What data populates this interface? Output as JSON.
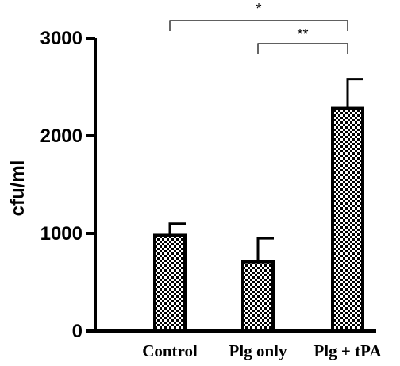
{
  "chart_data": {
    "type": "bar",
    "title": "",
    "xlabel": "",
    "ylabel": "cfu/ml",
    "ylim": [
      0,
      3000
    ],
    "yticks": [
      0,
      1000,
      2000,
      3000
    ],
    "categories": [
      "Control",
      "Plg only",
      "Plg + tPA"
    ],
    "values": [
      980,
      710,
      2280
    ],
    "error_upper": [
      120,
      240,
      300
    ],
    "bar_fill": "checkered",
    "colors": {
      "bar_outline": "#000000",
      "bar_pattern_dark": "#000000",
      "bar_pattern_light": "#ffffff"
    },
    "annotations": [
      {
        "from": "Control",
        "to": "Plg + tPA",
        "label": "*"
      },
      {
        "from": "Plg only",
        "to": "Plg + tPA",
        "label": "**"
      }
    ],
    "grid": false,
    "legend": "none"
  }
}
